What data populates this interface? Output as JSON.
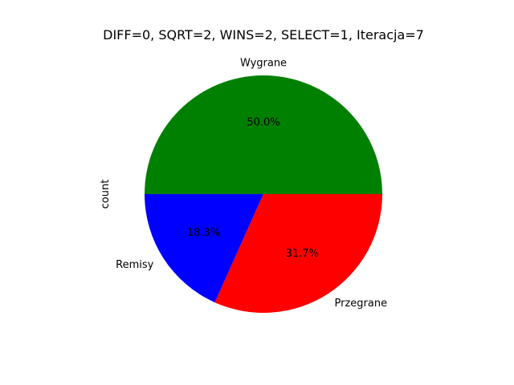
{
  "chart_data": {
    "type": "pie",
    "title": "DIFF=0, SQRT=2, WINS=2, SELECT=1, Iteracja=7",
    "ylabel": "count",
    "labels": [
      "Wygrane",
      "Remisy",
      "Przegrane"
    ],
    "values": [
      50.0,
      18.3,
      31.7
    ],
    "value_labels": [
      "50.0%",
      "18.3%",
      "31.7%"
    ],
    "colors": [
      "#008000",
      "#0000ff",
      "#ff0000"
    ],
    "start_angle_deg": 0,
    "direction": "counterclockwise",
    "legend": "none"
  }
}
